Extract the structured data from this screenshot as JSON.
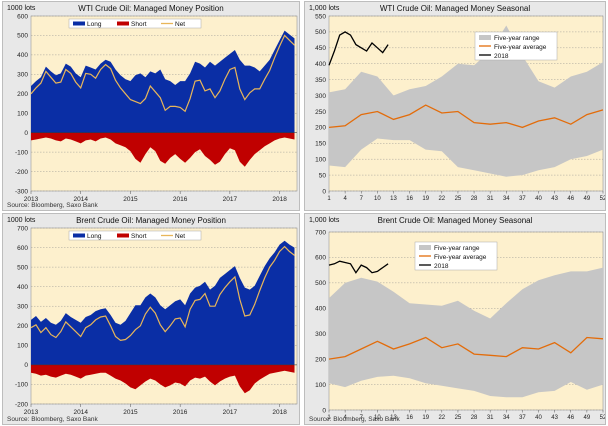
{
  "colors": {
    "plot_bg": "#fdf0cd",
    "long": "#0a2ea5",
    "short": "#c00000",
    "net": "#e8b65a",
    "range": "#c6c6c6",
    "avg": "#e36c0a",
    "current": "#000000"
  },
  "panels": {
    "p1": {
      "title": "WTI Crude Oil: Managed Money Position",
      "unit": "1000 lots",
      "source": "Source: Bloomberg, Saxo Bank"
    },
    "p2": {
      "title": "WTI Crude Oil: Managed Money Seasonal",
      "unit": "1,000 lots",
      "source": "Source: Bloomberg, Saxo Bank"
    },
    "p3": {
      "title": "Brent Crude Oil: Managed Money Position",
      "unit": "1000 lots",
      "source": "Source: Bloomberg, Saxo Bank"
    },
    "p4": {
      "title": "Brent Crude Oil: Managed Money Seasonal",
      "unit": "1,000 lots",
      "source": "Source: Bloomberg, Saxo Bank"
    }
  },
  "chart_data": [
    {
      "type": "area",
      "title": "WTI Crude Oil: Managed Money Position",
      "ylabel": "1000 lots",
      "ylim": [
        -300,
        600
      ],
      "yticks": [
        -300,
        -200,
        -100,
        0,
        100,
        200,
        300,
        400,
        500,
        600
      ],
      "xlim": [
        2013,
        2018.35
      ],
      "xticks": [
        2013,
        2014,
        2015,
        2016,
        2017,
        2018
      ],
      "legend": [
        "Long",
        "Short",
        "Net"
      ],
      "x": [
        2013.0,
        2013.1,
        2013.2,
        2013.3,
        2013.4,
        2013.5,
        2013.6,
        2013.7,
        2013.8,
        2013.9,
        2014.0,
        2014.1,
        2014.2,
        2014.3,
        2014.4,
        2014.5,
        2014.6,
        2014.7,
        2014.8,
        2014.9,
        2015.0,
        2015.1,
        2015.2,
        2015.3,
        2015.4,
        2015.5,
        2015.6,
        2015.7,
        2015.8,
        2015.9,
        2016.0,
        2016.1,
        2016.2,
        2016.3,
        2016.4,
        2016.5,
        2016.6,
        2016.7,
        2016.8,
        2016.9,
        2017.0,
        2017.1,
        2017.2,
        2017.3,
        2017.4,
        2017.5,
        2017.6,
        2017.7,
        2017.8,
        2017.9,
        2018.0,
        2018.1,
        2018.2,
        2018.3
      ],
      "series": [
        {
          "name": "Long",
          "values": [
            240,
            265,
            285,
            340,
            315,
            295,
            305,
            355,
            340,
            305,
            285,
            345,
            335,
            325,
            355,
            375,
            365,
            325,
            295,
            275,
            265,
            295,
            305,
            285,
            315,
            305,
            325,
            275,
            265,
            245,
            265,
            265,
            305,
            365,
            355,
            335,
            365,
            345,
            365,
            385,
            405,
            425,
            375,
            345,
            345,
            335,
            315,
            345,
            375,
            425,
            475,
            525,
            505,
            485
          ]
        },
        {
          "name": "Short",
          "values": [
            -40,
            -35,
            -30,
            -25,
            -30,
            -40,
            -45,
            -30,
            -35,
            -45,
            -55,
            -40,
            -35,
            -45,
            -30,
            -25,
            -35,
            -55,
            -65,
            -75,
            -95,
            -135,
            -155,
            -110,
            -75,
            -95,
            -145,
            -160,
            -130,
            -110,
            -135,
            -155,
            -130,
            -100,
            -85,
            -120,
            -140,
            -165,
            -150,
            -110,
            -80,
            -90,
            -150,
            -175,
            -140,
            -110,
            -90,
            -70,
            -55,
            -40,
            -30,
            -25,
            -30,
            -35
          ]
        },
        {
          "name": "Net",
          "values": [
            200,
            230,
            255,
            315,
            285,
            255,
            260,
            325,
            305,
            260,
            230,
            305,
            300,
            280,
            325,
            350,
            330,
            270,
            230,
            200,
            170,
            160,
            150,
            175,
            240,
            210,
            180,
            115,
            135,
            135,
            130,
            110,
            175,
            265,
            270,
            215,
            225,
            180,
            215,
            275,
            325,
            335,
            225,
            170,
            205,
            225,
            225,
            275,
            320,
            385,
            445,
            500,
            475,
            450
          ]
        }
      ]
    },
    {
      "type": "line",
      "title": "WTI Crude Oil: Managed Money Seasonal",
      "ylabel": "1,000 lots",
      "ylim": [
        0,
        550
      ],
      "yticks": [
        0,
        50,
        100,
        150,
        200,
        250,
        300,
        350,
        400,
        450,
        500,
        550
      ],
      "xlim": [
        1,
        52
      ],
      "xticks": [
        1,
        4,
        7,
        10,
        13,
        16,
        19,
        22,
        25,
        28,
        31,
        34,
        37,
        40,
        43,
        46,
        49,
        52
      ],
      "legend": [
        "Five-year range",
        "Five-year average",
        "2018"
      ],
      "x": [
        1,
        4,
        7,
        10,
        13,
        16,
        19,
        22,
        25,
        28,
        31,
        34,
        37,
        40,
        43,
        46,
        49,
        52
      ],
      "series": [
        {
          "name": "Five-year range max",
          "values": [
            310,
            320,
            375,
            360,
            300,
            320,
            330,
            360,
            400,
            395,
            440,
            520,
            425,
            345,
            325,
            360,
            375,
            405
          ]
        },
        {
          "name": "Five-year range min",
          "values": [
            80,
            75,
            130,
            165,
            160,
            160,
            130,
            125,
            75,
            65,
            55,
            45,
            50,
            65,
            75,
            100,
            110,
            130
          ]
        },
        {
          "name": "Five-year average",
          "values": [
            200,
            205,
            240,
            250,
            225,
            240,
            270,
            245,
            250,
            215,
            210,
            215,
            200,
            220,
            230,
            210,
            240,
            255
          ]
        },
        {
          "name": "2018",
          "x": [
            1,
            2,
            3,
            4,
            5,
            6,
            7,
            8,
            9,
            10,
            11,
            12
          ],
          "values": [
            395,
            440,
            490,
            500,
            490,
            460,
            450,
            440,
            465,
            450,
            435,
            460
          ]
        }
      ]
    },
    {
      "type": "area",
      "title": "Brent Crude Oil: Managed Money Position",
      "ylabel": "1000 lots",
      "ylim": [
        -200,
        700
      ],
      "yticks": [
        -200,
        -100,
        0,
        100,
        200,
        300,
        400,
        500,
        600,
        700
      ],
      "xlim": [
        2013,
        2018.35
      ],
      "xticks": [
        2013,
        2014,
        2015,
        2016,
        2017,
        2018
      ],
      "legend": [
        "Long",
        "Short",
        "Net"
      ],
      "x": [
        2013.0,
        2013.1,
        2013.2,
        2013.3,
        2013.4,
        2013.5,
        2013.6,
        2013.7,
        2013.8,
        2013.9,
        2014.0,
        2014.1,
        2014.2,
        2014.3,
        2014.4,
        2014.5,
        2014.6,
        2014.7,
        2014.8,
        2014.9,
        2015.0,
        2015.1,
        2015.2,
        2015.3,
        2015.4,
        2015.5,
        2015.6,
        2015.7,
        2015.8,
        2015.9,
        2016.0,
        2016.1,
        2016.2,
        2016.3,
        2016.4,
        2016.5,
        2016.6,
        2016.7,
        2016.8,
        2016.9,
        2017.0,
        2017.1,
        2017.2,
        2017.3,
        2017.4,
        2017.5,
        2017.6,
        2017.7,
        2017.8,
        2017.9,
        2018.0,
        2018.1,
        2018.2,
        2018.3
      ],
      "series": [
        {
          "name": "Long",
          "values": [
            230,
            250,
            220,
            240,
            215,
            205,
            225,
            265,
            245,
            230,
            215,
            245,
            255,
            275,
            285,
            290,
            255,
            215,
            205,
            225,
            265,
            305,
            305,
            345,
            365,
            345,
            305,
            285,
            305,
            325,
            335,
            305,
            365,
            395,
            405,
            425,
            385,
            405,
            445,
            465,
            485,
            505,
            445,
            395,
            385,
            405,
            455,
            505,
            545,
            575,
            615,
            635,
            615,
            600
          ]
        },
        {
          "name": "Short",
          "values": [
            -40,
            -45,
            -55,
            -50,
            -60,
            -65,
            -55,
            -45,
            -50,
            -60,
            -70,
            -55,
            -50,
            -45,
            -40,
            -40,
            -55,
            -70,
            -80,
            -95,
            -115,
            -125,
            -105,
            -85,
            -70,
            -80,
            -100,
            -115,
            -105,
            -90,
            -95,
            -110,
            -80,
            -65,
            -70,
            -60,
            -85,
            -105,
            -85,
            -70,
            -60,
            -55,
            -110,
            -145,
            -130,
            -95,
            -75,
            -60,
            -45,
            -40,
            -35,
            -30,
            -35,
            -40
          ]
        },
        {
          "name": "Net",
          "values": [
            190,
            205,
            165,
            190,
            155,
            140,
            170,
            220,
            195,
            170,
            145,
            190,
            205,
            230,
            245,
            250,
            200,
            145,
            125,
            130,
            150,
            180,
            200,
            260,
            295,
            265,
            205,
            170,
            200,
            235,
            240,
            195,
            285,
            330,
            335,
            365,
            300,
            300,
            360,
            395,
            425,
            450,
            335,
            250,
            255,
            310,
            380,
            445,
            500,
            535,
            580,
            605,
            580,
            560
          ]
        }
      ]
    },
    {
      "type": "line",
      "title": "Brent Crude Oil: Managed Money Seasonal",
      "ylabel": "1,000 lots",
      "ylim": [
        0,
        700
      ],
      "yticks": [
        0,
        100,
        200,
        300,
        400,
        500,
        600,
        700
      ],
      "xlim": [
        1,
        52
      ],
      "xticks": [
        1,
        4,
        7,
        10,
        13,
        16,
        19,
        22,
        25,
        28,
        31,
        34,
        37,
        40,
        43,
        46,
        49,
        52
      ],
      "legend": [
        "Five-year range",
        "Five-year average",
        "2018"
      ],
      "x": [
        1,
        4,
        7,
        10,
        13,
        16,
        19,
        22,
        25,
        28,
        31,
        34,
        37,
        40,
        43,
        46,
        49,
        52
      ],
      "series": [
        {
          "name": "Five-year range max",
          "values": [
            440,
            500,
            520,
            505,
            465,
            420,
            415,
            410,
            430,
            390,
            360,
            420,
            475,
            510,
            530,
            545,
            545,
            560
          ]
        },
        {
          "name": "Five-year range min",
          "values": [
            105,
            90,
            115,
            130,
            135,
            125,
            105,
            95,
            85,
            75,
            55,
            50,
            50,
            70,
            75,
            110,
            80,
            100
          ]
        },
        {
          "name": "Five-year average",
          "values": [
            200,
            210,
            240,
            270,
            240,
            260,
            285,
            245,
            260,
            220,
            215,
            210,
            245,
            240,
            265,
            225,
            285,
            280
          ]
        },
        {
          "name": "2018",
          "x": [
            1,
            2,
            3,
            4,
            5,
            6,
            7,
            8,
            9,
            10,
            11,
            12
          ],
          "values": [
            570,
            575,
            585,
            580,
            575,
            540,
            570,
            560,
            540,
            545,
            560,
            575
          ]
        }
      ]
    }
  ]
}
